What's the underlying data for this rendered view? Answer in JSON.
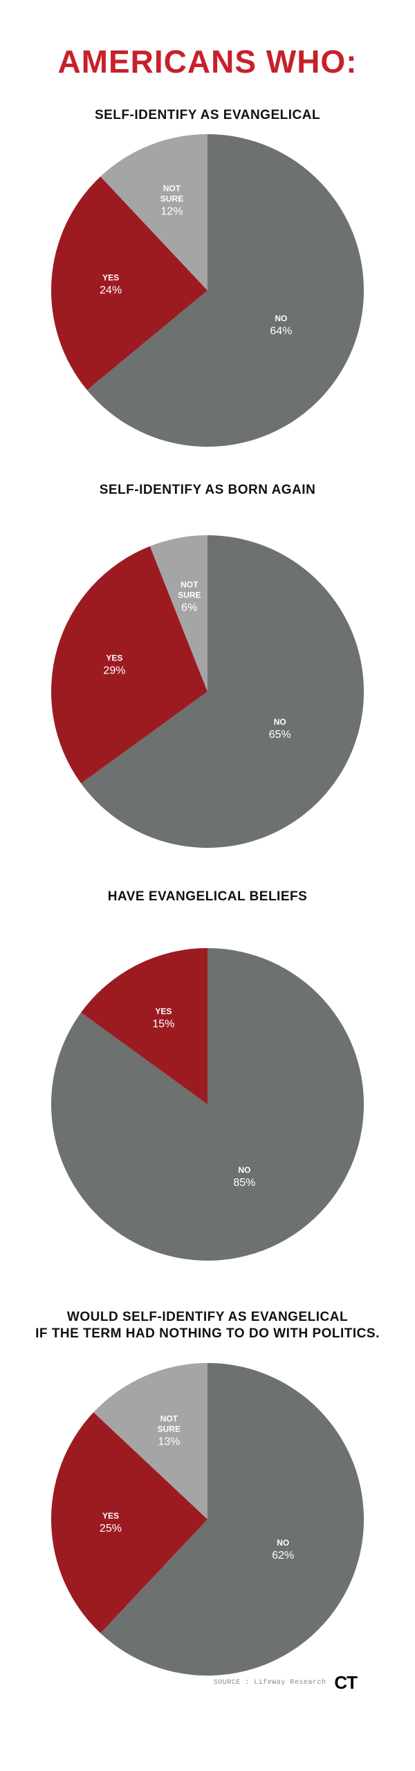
{
  "page": {
    "title": "AMERICANS WHO:"
  },
  "colors": {
    "title": "#c8202a",
    "no": "#6d716f",
    "yes": "#9c1b21",
    "not_sure": "#a5a5a5"
  },
  "chart_data": [
    {
      "type": "pie",
      "title_lines": [
        "SELF-IDENTIFY AS EVANGELICAL"
      ],
      "slices": [
        {
          "label": "NO",
          "value": 64,
          "value_text": "64%",
          "color": "#6d716f"
        },
        {
          "label": "YES",
          "value": 24,
          "value_text": "24%",
          "color": "#9c1b21"
        },
        {
          "label": "NOT SURE",
          "label_lines": [
            "NOT",
            "SURE"
          ],
          "value": 12,
          "value_text": "12%",
          "color": "#a5a5a5"
        }
      ]
    },
    {
      "type": "pie",
      "title_lines": [
        "SELF-IDENTIFY AS BORN AGAIN"
      ],
      "slices": [
        {
          "label": "NO",
          "value": 65,
          "value_text": "65%",
          "color": "#6d716f"
        },
        {
          "label": "YES",
          "value": 29,
          "value_text": "29%",
          "color": "#9c1b21"
        },
        {
          "label": "NOT SURE",
          "label_lines": [
            "NOT",
            "SURE"
          ],
          "value": 6,
          "value_text": "6%",
          "color": "#a5a5a5"
        }
      ]
    },
    {
      "type": "pie",
      "title_lines": [
        "HAVE EVANGELICAL BELIEFS"
      ],
      "slices": [
        {
          "label": "NO",
          "value": 85,
          "value_text": "85%",
          "color": "#6d716f"
        },
        {
          "label": "YES",
          "value": 15,
          "value_text": "15%",
          "color": "#9c1b21"
        }
      ]
    },
    {
      "type": "pie",
      "title_lines": [
        "WOULD SELF-IDENTIFY AS EVANGELICAL",
        "IF THE TERM HAD NOTHING TO DO WITH POLITICS."
      ],
      "slices": [
        {
          "label": "NO",
          "value": 62,
          "value_text": "62%",
          "color": "#6d716f"
        },
        {
          "label": "YES",
          "value": 25,
          "value_text": "25%",
          "color": "#9c1b21"
        },
        {
          "label": "NOT SURE",
          "label_lines": [
            "NOT",
            "SURE"
          ],
          "value": 13,
          "value_text": "13%",
          "color": "#a5a5a5"
        }
      ]
    }
  ],
  "footer": {
    "source": "SOURCE : LifeWay Research",
    "logo": "CT"
  }
}
